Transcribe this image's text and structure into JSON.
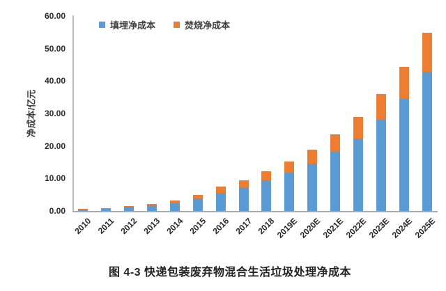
{
  "page": {
    "background_color": "#ffffff"
  },
  "chart_data": {
    "type": "bar",
    "stacked": true,
    "caption": "图 4-3 快递包装废弃物混合生活垃圾处理净成本",
    "ylabel": "净成本/亿元",
    "xlabel": "",
    "ylim": [
      0,
      60
    ],
    "ytick_step": 10,
    "ytick_labels": [
      "0.00",
      "10.00",
      "20.00",
      "30.00",
      "40.00",
      "50.00",
      "60.00"
    ],
    "grid": false,
    "legend_position": "top",
    "categories": [
      "2010",
      "2011",
      "2012",
      "2013",
      "2014",
      "2015",
      "2016",
      "2017",
      "2018",
      "2019E",
      "2020E",
      "2021E",
      "2022E",
      "2023E",
      "2024E",
      "2025E"
    ],
    "series": [
      {
        "name": "填埋净成本",
        "color": "#5B9BD5",
        "values": [
          0.5,
          0.8,
          1.2,
          1.7,
          2.4,
          3.8,
          5.5,
          7.3,
          9.5,
          11.8,
          14.5,
          18.3,
          22.2,
          28.0,
          34.4,
          42.8
        ]
      },
      {
        "name": "焚烧净成本",
        "color": "#ED7D31",
        "values": [
          0.1,
          0.15,
          0.3,
          0.5,
          0.9,
          1.1,
          2.0,
          2.2,
          2.7,
          3.4,
          4.4,
          5.2,
          6.8,
          7.9,
          9.9,
          12.0
        ]
      }
    ],
    "totals": [
      0.6,
      0.95,
      1.5,
      2.2,
      3.3,
      4.9,
      7.5,
      9.5,
      12.2,
      15.2,
      18.9,
      23.5,
      29.0,
      35.9,
      44.3,
      54.8
    ],
    "axis_line_color": "#a9a9a9",
    "tick_text_color": "#2b2b2b"
  }
}
